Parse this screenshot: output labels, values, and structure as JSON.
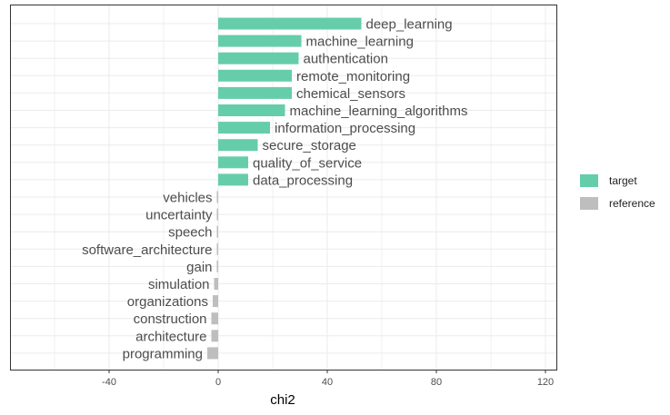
{
  "chart_data": {
    "type": "bar",
    "orientation": "horizontal",
    "xlabel": "chi2",
    "ylabel": "",
    "xlim": [
      -76,
      124
    ],
    "xticks": [
      -40,
      0,
      40,
      80,
      120
    ],
    "xtick_labels": [
      "-40",
      "0",
      "40",
      "80",
      "120"
    ],
    "grid": true,
    "legend_position": "right",
    "series": [
      {
        "name": "target",
        "color": "#66CDAA"
      },
      {
        "name": "reference",
        "color": "#BEBEBE"
      }
    ],
    "bars": [
      {
        "label": "deep_learning",
        "value": 52.5,
        "group": "target"
      },
      {
        "label": "machine_learning",
        "value": 30.5,
        "group": "target"
      },
      {
        "label": "authentication",
        "value": 29.5,
        "group": "target"
      },
      {
        "label": "remote_monitoring",
        "value": 27.0,
        "group": "target"
      },
      {
        "label": "chemical_sensors",
        "value": 27.0,
        "group": "target"
      },
      {
        "label": "machine_learning_algorithms",
        "value": 24.5,
        "group": "target"
      },
      {
        "label": "information_processing",
        "value": 19.0,
        "group": "target"
      },
      {
        "label": "secure_storage",
        "value": 14.5,
        "group": "target"
      },
      {
        "label": "quality_of_service",
        "value": 11.0,
        "group": "target"
      },
      {
        "label": "data_processing",
        "value": 11.0,
        "group": "target"
      },
      {
        "label": "vehicles",
        "value": -0.5,
        "group": "reference"
      },
      {
        "label": "uncertainty",
        "value": -0.5,
        "group": "reference"
      },
      {
        "label": "speech",
        "value": -0.5,
        "group": "reference"
      },
      {
        "label": "software_architecture",
        "value": -0.5,
        "group": "reference"
      },
      {
        "label": "gain",
        "value": -0.5,
        "group": "reference"
      },
      {
        "label": "simulation",
        "value": -1.5,
        "group": "reference"
      },
      {
        "label": "organizations",
        "value": -2.0,
        "group": "reference"
      },
      {
        "label": "construction",
        "value": -2.5,
        "group": "reference"
      },
      {
        "label": "architecture",
        "value": -2.5,
        "group": "reference"
      },
      {
        "label": "programming",
        "value": -4.0,
        "group": "reference"
      }
    ]
  },
  "legend": {
    "items": [
      {
        "label": "target",
        "color": "#66CDAA"
      },
      {
        "label": "reference",
        "color": "#BEBEBE"
      }
    ]
  }
}
